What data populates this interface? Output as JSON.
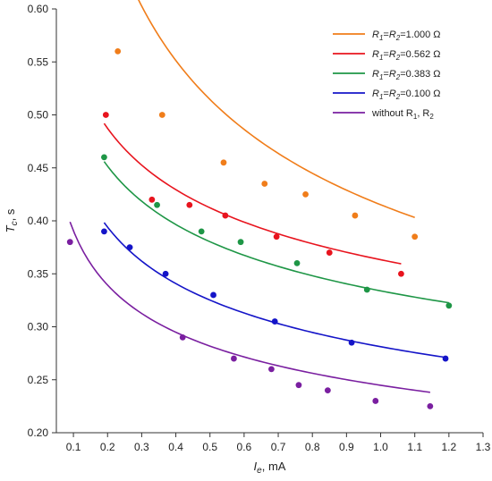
{
  "chart_data": {
    "type": "scatter",
    "title": "",
    "xlabel": "I",
    "xlabel_sub": "e",
    "xlabel_unit": ", mA",
    "ylabel": "T",
    "ylabel_sub": "c",
    "ylabel_unit": ", s",
    "xlim": [
      0.05,
      1.3
    ],
    "ylim": [
      0.2,
      0.6
    ],
    "xticks": [
      "0.1",
      "0.2",
      "0.3",
      "0.4",
      "0.5",
      "0.6",
      "0.7",
      "0.8",
      "0.9",
      "1.0",
      "1.1",
      "1.2",
      "1.3"
    ],
    "yticks": [
      "0.20",
      "0.25",
      "0.30",
      "0.35",
      "0.40",
      "0.45",
      "0.50",
      "0.55",
      "0.60"
    ],
    "grid": false,
    "legend_position": "top-right",
    "series": [
      {
        "name_parts": [
          {
            "t": "R",
            "i": true
          },
          {
            "t": "1",
            "sub": true,
            "i": true
          },
          {
            "t": "=",
            "i": false
          },
          {
            "t": "R",
            "i": true
          },
          {
            "t": "2",
            "sub": true,
            "i": true
          },
          {
            "t": "=1.000 Ω",
            "i": false
          }
        ],
        "color": "#f07d1a",
        "points": [
          [
            0.23,
            0.56
          ],
          [
            0.36,
            0.5
          ],
          [
            0.54,
            0.455
          ],
          [
            0.66,
            0.435
          ],
          [
            0.78,
            0.425
          ],
          [
            0.925,
            0.405
          ],
          [
            1.1,
            0.385
          ]
        ],
        "fit": {
          "a": 0.4152,
          "b": -0.3095,
          "x0": 0.22,
          "x1": 1.1
        }
      },
      {
        "name_parts": [
          {
            "t": "R",
            "i": true
          },
          {
            "t": "1",
            "sub": true,
            "i": true
          },
          {
            "t": "=",
            "i": false
          },
          {
            "t": "R",
            "i": true
          },
          {
            "t": "2",
            "sub": true,
            "i": true
          },
          {
            "t": "=0.562 Ω",
            "i": false
          }
        ],
        "color": "#e8141e",
        "points": [
          [
            0.195,
            0.5
          ],
          [
            0.33,
            0.42
          ],
          [
            0.44,
            0.415
          ],
          [
            0.545,
            0.405
          ],
          [
            0.695,
            0.385
          ],
          [
            0.85,
            0.37
          ],
          [
            1.06,
            0.35
          ]
        ],
        "fit": {
          "a": 0.3633,
          "b": -0.1825,
          "x0": 0.19,
          "x1": 1.06
        }
      },
      {
        "name_parts": [
          {
            "t": "R",
            "i": true
          },
          {
            "t": "1",
            "sub": true,
            "i": true
          },
          {
            "t": "=",
            "i": false
          },
          {
            "t": "R",
            "i": true
          },
          {
            "t": "2",
            "sub": true,
            "i": true
          },
          {
            "t": "=0.383 Ω",
            "i": false
          }
        ],
        "color": "#1e9646",
        "points": [
          [
            0.19,
            0.46
          ],
          [
            0.345,
            0.415
          ],
          [
            0.475,
            0.39
          ],
          [
            0.59,
            0.38
          ],
          [
            0.755,
            0.36
          ],
          [
            0.96,
            0.335
          ],
          [
            1.2,
            0.32
          ]
        ],
        "fit": {
          "a": 0.3339,
          "b": -0.1876,
          "x0": 0.19,
          "x1": 1.2
        }
      },
      {
        "name_parts": [
          {
            "t": "R",
            "i": true
          },
          {
            "t": "1",
            "sub": true,
            "i": true
          },
          {
            "t": "=",
            "i": false
          },
          {
            "t": "R",
            "i": true
          },
          {
            "t": "2",
            "sub": true,
            "i": true
          },
          {
            "t": "=0.100 Ω",
            "i": false
          }
        ],
        "color": "#1414c8",
        "points": [
          [
            0.19,
            0.39
          ],
          [
            0.265,
            0.375
          ],
          [
            0.37,
            0.35
          ],
          [
            0.51,
            0.33
          ],
          [
            0.69,
            0.305
          ],
          [
            0.915,
            0.285
          ],
          [
            1.19,
            0.27
          ]
        ],
        "fit": {
          "a": 0.2812,
          "b": -0.2097,
          "x0": 0.19,
          "x1": 1.19
        }
      },
      {
        "name_parts": [
          {
            "t": "without R",
            "i": false
          },
          {
            "t": "1",
            "sub": true,
            "i": false
          },
          {
            "t": ", R",
            "i": false
          },
          {
            "t": "2",
            "sub": true,
            "i": false
          }
        ],
        "color": "#7a1fa0",
        "points": [
          [
            0.09,
            0.38
          ],
          [
            0.42,
            0.29
          ],
          [
            0.57,
            0.27
          ],
          [
            0.68,
            0.26
          ],
          [
            0.76,
            0.245
          ],
          [
            0.845,
            0.24
          ],
          [
            0.985,
            0.23
          ],
          [
            1.145,
            0.225
          ]
        ],
        "fit": {
          "a": 0.2448,
          "b": -0.2029,
          "x0": 0.09,
          "x1": 1.145
        }
      }
    ]
  }
}
